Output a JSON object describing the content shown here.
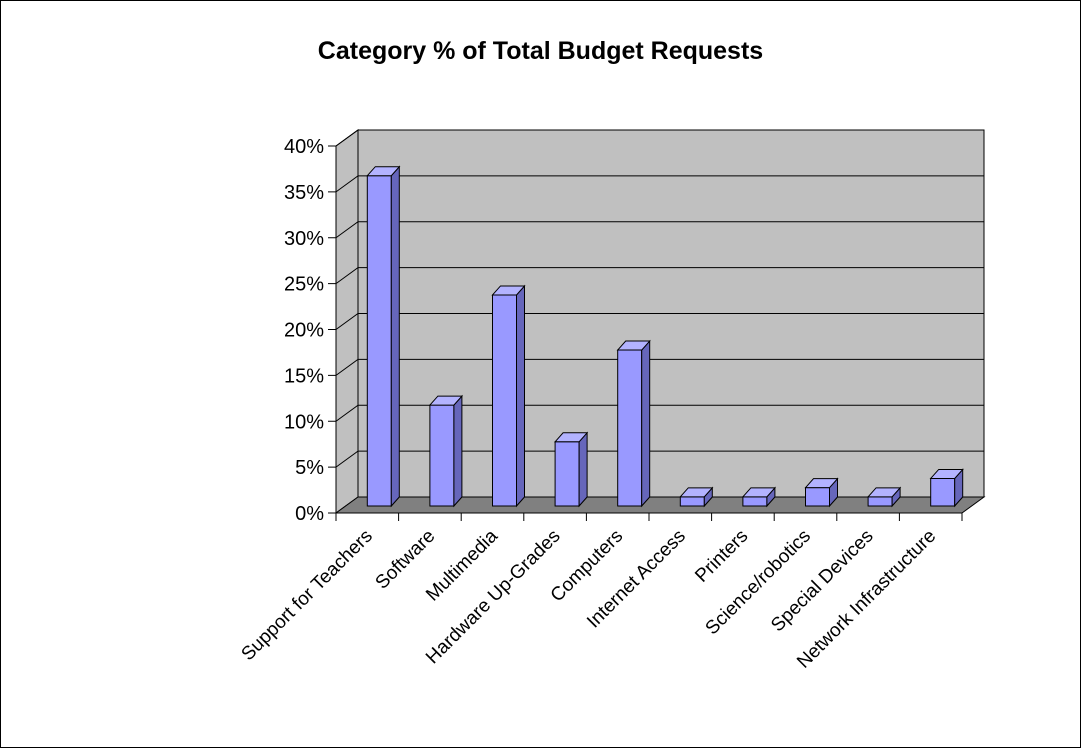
{
  "chart_data": {
    "type": "bar",
    "title": "Category % of Total Budget Requests",
    "xlabel": "",
    "ylabel": "",
    "categories": [
      "Support for Teachers",
      "Software",
      "Multimedia",
      "Hardware Up-Grades",
      "Computers",
      "Internet Access",
      "Printers",
      "Science/robotics",
      "Special Devices",
      "Network Infrastructure"
    ],
    "values": [
      36,
      11,
      23,
      7,
      17,
      1,
      1,
      2,
      1,
      3
    ],
    "ylim": [
      0,
      40
    ],
    "yticks": [
      "0%",
      "5%",
      "10%",
      "15%",
      "20%",
      "25%",
      "30%",
      "35%",
      "40%"
    ],
    "grid": true,
    "legend": "none",
    "colors": {
      "bar_front": "#9999ff",
      "bar_side": "#6666bb",
      "bar_top": "#b3b3ff",
      "wall": "#c0c0c0",
      "floor": "#808080"
    }
  }
}
